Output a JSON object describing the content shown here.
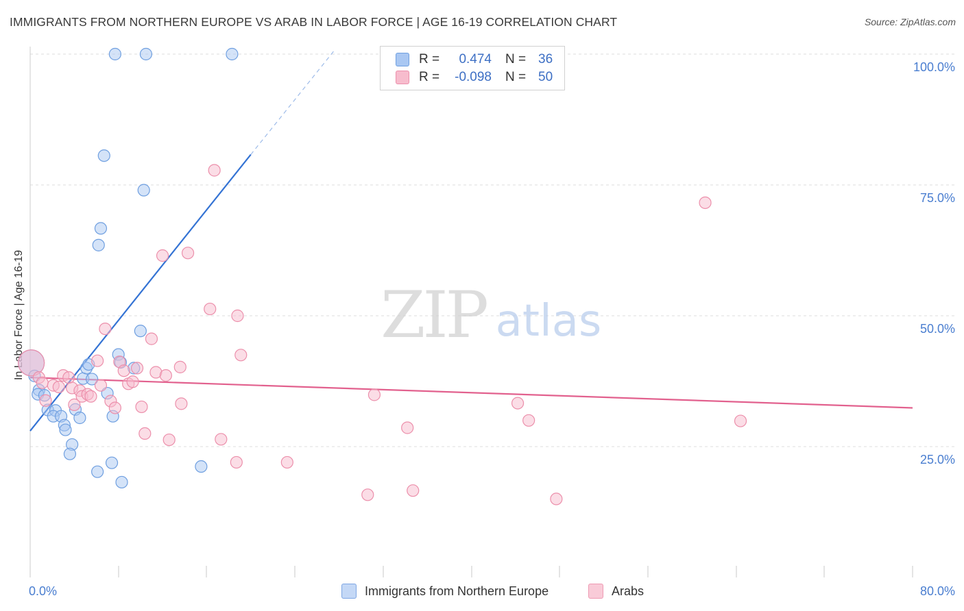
{
  "title": "IMMIGRANTS FROM NORTHERN EUROPE VS ARAB IN LABOR FORCE | AGE 16-19 CORRELATION CHART",
  "source": "Source: ZipAtlas.com",
  "watermark": {
    "zip": "ZIP",
    "atlas": "atlas"
  },
  "legend": {
    "r_label": "R =",
    "n_label": "N =",
    "entries": [
      {
        "r": "0.474",
        "n": "36",
        "color": "#a9c7f2",
        "border": "#6f9fe0"
      },
      {
        "r": "-0.098",
        "n": "50",
        "color": "#f7bccd",
        "border": "#ec8fab"
      }
    ]
  },
  "bottom_legend": [
    {
      "label": "Immigrants from Northern Europe",
      "color": "#c4d8f6",
      "border": "#7ea6e3"
    },
    {
      "label": "Arabs",
      "color": "#f9cbd8",
      "border": "#ee9ab3"
    }
  ],
  "chart_data": {
    "type": "scatter",
    "title": "IMMIGRANTS FROM NORTHERN EUROPE VS ARAB IN LABOR FORCE | AGE 16-19 CORRELATION CHART",
    "xlabel": "",
    "ylabel": "In Labor Force | Age 16-19",
    "xlim": [
      0,
      80
    ],
    "ylim": [
      0,
      105
    ],
    "x_tick_labels": [
      {
        "value": 0,
        "label": "0.0%"
      },
      {
        "value": 80,
        "label": "80.0%"
      }
    ],
    "y_tick_labels": [
      {
        "value": 25,
        "label": "25.0%"
      },
      {
        "value": 50,
        "label": "50.0%"
      },
      {
        "value": 75,
        "label": "75.0%"
      },
      {
        "value": 100,
        "label": "100.0%"
      }
    ],
    "x_minor_ticks": [
      0,
      8,
      16,
      24,
      32,
      40,
      48,
      56,
      64,
      72,
      80
    ],
    "grid": true,
    "series": [
      {
        "name": "Immigrants from Northern Europe",
        "color": "#6f9fe0",
        "fill": "#a9c7f2",
        "trend": {
          "x0": 0,
          "y0": 28.0,
          "x1": 20.0,
          "y1": 80.8,
          "dash_to_x": 27.5,
          "dash_to_y": 100.5,
          "color": "#3473d4"
        },
        "points": [
          {
            "x": 0.1,
            "y": 41.0,
            "big": true
          },
          {
            "x": 0.4,
            "y": 38.5
          },
          {
            "x": 0.8,
            "y": 35.8
          },
          {
            "x": 0.7,
            "y": 35.0
          },
          {
            "x": 1.3,
            "y": 34.8
          },
          {
            "x": 1.6,
            "y": 32.0
          },
          {
            "x": 2.3,
            "y": 31.9
          },
          {
            "x": 2.1,
            "y": 30.8
          },
          {
            "x": 2.8,
            "y": 30.8
          },
          {
            "x": 3.1,
            "y": 29.1
          },
          {
            "x": 3.2,
            "y": 28.2
          },
          {
            "x": 3.8,
            "y": 25.4
          },
          {
            "x": 3.6,
            "y": 23.6
          },
          {
            "x": 4.1,
            "y": 32.1
          },
          {
            "x": 4.5,
            "y": 30.5
          },
          {
            "x": 4.8,
            "y": 38.0
          },
          {
            "x": 5.1,
            "y": 40.0
          },
          {
            "x": 5.3,
            "y": 40.7
          },
          {
            "x": 5.6,
            "y": 37.9
          },
          {
            "x": 6.2,
            "y": 63.5
          },
          {
            "x": 6.4,
            "y": 66.7
          },
          {
            "x": 6.7,
            "y": 80.6
          },
          {
            "x": 7.0,
            "y": 35.2
          },
          {
            "x": 7.5,
            "y": 30.8
          },
          {
            "x": 7.4,
            "y": 21.9
          },
          {
            "x": 6.1,
            "y": 20.2
          },
          {
            "x": 8.3,
            "y": 18.2
          },
          {
            "x": 8.0,
            "y": 42.6
          },
          {
            "x": 9.4,
            "y": 40.0
          },
          {
            "x": 10.0,
            "y": 47.1
          },
          {
            "x": 10.3,
            "y": 74.0
          },
          {
            "x": 7.7,
            "y": 100.0
          },
          {
            "x": 10.5,
            "y": 100.0
          },
          {
            "x": 18.3,
            "y": 100.0
          },
          {
            "x": 15.5,
            "y": 21.2
          },
          {
            "x": 8.2,
            "y": 41.1
          }
        ]
      },
      {
        "name": "Arabs",
        "color": "#ec8fab",
        "fill": "#f7bccd",
        "trend": {
          "x0": 0,
          "y0": 38.2,
          "x1": 80,
          "y1": 32.4,
          "color": "#e2618e"
        },
        "points": [
          {
            "x": 0.1,
            "y": 41.0,
            "big": true
          },
          {
            "x": 0.8,
            "y": 38.2
          },
          {
            "x": 1.1,
            "y": 37.2
          },
          {
            "x": 1.4,
            "y": 33.8
          },
          {
            "x": 2.1,
            "y": 36.7
          },
          {
            "x": 2.6,
            "y": 36.4
          },
          {
            "x": 3.0,
            "y": 38.6
          },
          {
            "x": 3.5,
            "y": 38.2
          },
          {
            "x": 3.8,
            "y": 36.2
          },
          {
            "x": 4.0,
            "y": 33.0
          },
          {
            "x": 4.5,
            "y": 35.7
          },
          {
            "x": 4.7,
            "y": 34.6
          },
          {
            "x": 5.2,
            "y": 35.0
          },
          {
            "x": 5.5,
            "y": 34.6
          },
          {
            "x": 6.1,
            "y": 41.4
          },
          {
            "x": 6.4,
            "y": 36.7
          },
          {
            "x": 6.8,
            "y": 47.5
          },
          {
            "x": 7.3,
            "y": 33.7
          },
          {
            "x": 7.7,
            "y": 32.4
          },
          {
            "x": 8.1,
            "y": 41.2
          },
          {
            "x": 8.5,
            "y": 39.5
          },
          {
            "x": 8.9,
            "y": 37.0
          },
          {
            "x": 9.3,
            "y": 37.4
          },
          {
            "x": 9.7,
            "y": 40.0
          },
          {
            "x": 10.1,
            "y": 32.6
          },
          {
            "x": 10.4,
            "y": 27.5
          },
          {
            "x": 11.0,
            "y": 45.6
          },
          {
            "x": 11.4,
            "y": 39.2
          },
          {
            "x": 12.0,
            "y": 61.5
          },
          {
            "x": 12.3,
            "y": 38.6
          },
          {
            "x": 12.6,
            "y": 26.3
          },
          {
            "x": 13.6,
            "y": 40.2
          },
          {
            "x": 13.7,
            "y": 33.2
          },
          {
            "x": 14.3,
            "y": 62.0
          },
          {
            "x": 16.3,
            "y": 51.3
          },
          {
            "x": 16.7,
            "y": 77.8
          },
          {
            "x": 17.3,
            "y": 26.4
          },
          {
            "x": 18.7,
            "y": 22.0
          },
          {
            "x": 18.8,
            "y": 50.0
          },
          {
            "x": 19.1,
            "y": 42.5
          },
          {
            "x": 23.3,
            "y": 22.0
          },
          {
            "x": 30.6,
            "y": 15.8
          },
          {
            "x": 31.2,
            "y": 34.9
          },
          {
            "x": 34.2,
            "y": 28.6
          },
          {
            "x": 34.7,
            "y": 16.6
          },
          {
            "x": 44.2,
            "y": 33.3
          },
          {
            "x": 45.2,
            "y": 30.0
          },
          {
            "x": 47.7,
            "y": 15.0
          },
          {
            "x": 61.2,
            "y": 71.6
          },
          {
            "x": 64.4,
            "y": 29.9
          }
        ]
      }
    ]
  }
}
